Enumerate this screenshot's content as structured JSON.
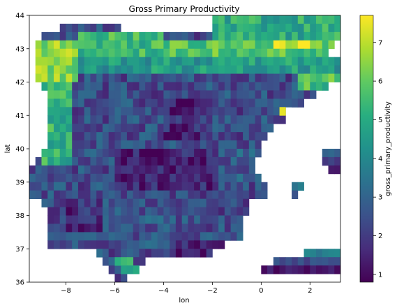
{
  "chart_data": {
    "type": "heatmap",
    "title": "Gross Primary Productivity",
    "xlabel": "lon",
    "ylabel": "lat",
    "colorbar_label": "gross_primary_productivity",
    "colormap": "viridis",
    "xlim": [
      -9.5,
      3.25
    ],
    "ylim": [
      36,
      44
    ],
    "clim": [
      0.8,
      7.7
    ],
    "cell_size_deg": 0.25,
    "x_ticks": [
      -8,
      -6,
      -4,
      -2,
      0,
      2
    ],
    "x_tick_labels": [
      "−8",
      "−6",
      "−4",
      "−2",
      "0",
      "2"
    ],
    "y_ticks": [
      36,
      37,
      38,
      39,
      40,
      41,
      42,
      43,
      44
    ],
    "y_tick_labels": [
      "36",
      "37",
      "38",
      "39",
      "40",
      "41",
      "42",
      "43",
      "44"
    ],
    "colorbar_ticks": [
      1,
      2,
      3,
      4,
      5,
      6,
      7
    ],
    "colorbar_tick_labels": [
      "1",
      "2",
      "3",
      "4",
      "5",
      "6",
      "7"
    ],
    "lat_rows": [
      {
        "lat_start": 43.75,
        "lon_start": -2,
        "lon_end": 3.25
      },
      {
        "lat_start": 43.5,
        "lon_start": -8.25,
        "lon_end": -5.75
      },
      {
        "lat_start": 43.5,
        "lon_start": -2,
        "lon_end": 3.25
      },
      {
        "lat_start": 43.25,
        "lon_start": -9.0,
        "lon_end": 3.25
      },
      {
        "lat_start": 43.0,
        "lon_start": -9.25,
        "lon_end": 3.0
      },
      {
        "lat_start": 42.75,
        "lon_start": -9.25,
        "lon_end": 2.75
      },
      {
        "lat_start": 42.5,
        "lon_start": -9.25,
        "lon_end": 3.25
      },
      {
        "lat_start": 42.25,
        "lon_start": -9.25,
        "lon_end": 3.25
      },
      {
        "lat_start": 42.0,
        "lon_start": -9.25,
        "lon_end": 3.25
      },
      {
        "lat_start": 41.75,
        "lon_start": -9.0,
        "lon_end": 2.75
      },
      {
        "lat_start": 41.5,
        "lon_start": -8.75,
        "lon_end": 2.25
      },
      {
        "lat_start": 41.25,
        "lon_start": -8.75,
        "lon_end": 1.75
      },
      {
        "lat_start": 41.0,
        "lon_start": -8.75,
        "lon_end": 1.0
      },
      {
        "lat_start": 40.75,
        "lon_start": -8.75,
        "lon_end": 1.0
      },
      {
        "lat_start": 40.5,
        "lon_start": -8.75,
        "lon_end": 0.5
      },
      {
        "lat_start": 40.25,
        "lon_start": -8.75,
        "lon_end": 0.25
      },
      {
        "lat_start": 40.0,
        "lon_start": -8.75,
        "lon_end": 0
      },
      {
        "lat_start": 39.75,
        "lon_start": -9.0,
        "lon_end": 0
      },
      {
        "lat_start": 39.5,
        "lon_start": -9.25,
        "lon_end": -0.25
      },
      {
        "lat_start": 39.25,
        "lon_start": -9.5,
        "lon_end": -0.25
      },
      {
        "lat_start": 39.0,
        "lon_start": -9.5,
        "lon_end": 0
      },
      {
        "lat_start": 38.75,
        "lon_start": -9.5,
        "lon_end": 0.25
      },
      {
        "lat_start": 38.5,
        "lon_start": -9.5,
        "lon_end": 0.25
      },
      {
        "lat_start": 38.25,
        "lon_start": -9.0,
        "lon_end": -0.5
      },
      {
        "lat_start": 38.0,
        "lon_start": -8.75,
        "lon_end": -0.5
      },
      {
        "lat_start": 37.75,
        "lon_start": -8.75,
        "lon_end": -0.75
      },
      {
        "lat_start": 37.5,
        "lon_start": -8.75,
        "lon_end": -0.75
      },
      {
        "lat_start": 37.25,
        "lon_start": -8.75,
        "lon_end": -0.75
      },
      {
        "lat_start": 37.0,
        "lon_start": -8.75,
        "lon_end": -1.5
      },
      {
        "lat_start": 36.75,
        "lon_start": -6.75,
        "lon_end": -2.0
      },
      {
        "lat_start": 36.5,
        "lon_start": -6.5,
        "lon_end": -4.75
      },
      {
        "lat_start": 36.25,
        "lon_start": -6.25,
        "lon_end": -5.5
      },
      {
        "lat_start": 36.0,
        "lon_start": -6.0,
        "lon_end": -5.5
      }
    ],
    "extra_patches": [
      {
        "lat_start": 41.5,
        "lon_start": -4.5,
        "lon_end": -4.25,
        "value": 1.2
      },
      {
        "lat_start": 41.0,
        "lon_start": 0.75,
        "lon_end": 1.0,
        "value": 7.6
      },
      {
        "lat_start": 41.25,
        "lon_start": 1.25,
        "lon_end": 1.75,
        "value": 2.6
      },
      {
        "lat_start": 39.75,
        "lon_start": 2.5,
        "lon_end": 3.25,
        "value": 3.2
      },
      {
        "lat_start": 39.5,
        "lon_start": 2.5,
        "lon_end": 3.25,
        "value": 2.0
      },
      {
        "lat_start": 39.25,
        "lon_start": 2.75,
        "lon_end": 3.25,
        "value": 1.3
      },
      {
        "lat_start": 38.75,
        "lon_start": 1.25,
        "lon_end": 1.75,
        "value": 3.6
      },
      {
        "lat_start": 38.5,
        "lon_start": 1.25,
        "lon_end": 1.5,
        "value": 2.4
      },
      {
        "lat_start": 36.75,
        "lon_start": 1.75,
        "lon_end": 3.25,
        "value": 3.8
      },
      {
        "lat_start": 36.5,
        "lon_start": 0.5,
        "lon_end": 3.25,
        "value": 2.4
      },
      {
        "lat_start": 36.25,
        "lon_start": 0,
        "lon_end": 3.25,
        "value": 1.2
      },
      {
        "lat_start": 36.5,
        "lon_start": -6.0,
        "lon_end": -5.25,
        "value": 5.3
      },
      {
        "lat_start": 36.25,
        "lon_start": -5.75,
        "lon_end": -5.0,
        "value": 4.8
      }
    ],
    "value_regions": [
      {
        "lat_min": 43.25,
        "lat_max": 44,
        "lon_min": -2,
        "lon_max": 3.25,
        "value": 5.0
      },
      {
        "lat_min": 42.0,
        "lat_max": 43.25,
        "lon_min": -9.5,
        "lon_max": -7.5,
        "value": 6.4
      },
      {
        "lat_min": 42.75,
        "lat_max": 43.5,
        "lon_min": -7.5,
        "lon_max": -4.0,
        "value": 5.4
      },
      {
        "lat_min": 42.75,
        "lat_max": 43.25,
        "lon_min": -4.0,
        "lon_max": 3.25,
        "value": 5.8
      },
      {
        "lat_min": 43.0,
        "lat_max": 43.25,
        "lon_min": 0.5,
        "lon_max": 2.5,
        "value": 7.3
      },
      {
        "lat_min": 42.25,
        "lat_max": 42.75,
        "lon_min": -7.5,
        "lon_max": -4.5,
        "value": 4.4
      },
      {
        "lat_min": 42.25,
        "lat_max": 42.75,
        "lon_min": -4.5,
        "lon_max": 3.25,
        "value": 4.6
      },
      {
        "lat_min": 41.75,
        "lat_max": 42.25,
        "lon_min": 1.5,
        "lon_max": 3.25,
        "value": 5.6
      },
      {
        "lat_min": 39.5,
        "lat_max": 42.0,
        "lon_min": -9.0,
        "lon_max": -7.75,
        "value": 5.2
      },
      {
        "lat_min": 40.25,
        "lat_max": 41.5,
        "lon_min": -4.0,
        "lon_max": -2.5,
        "value": 1.5
      },
      {
        "lat_min": 40.25,
        "lat_max": 41.25,
        "lon_min": -2.25,
        "lon_max": 0,
        "value": 2.3
      },
      {
        "lat_min": 38.75,
        "lat_max": 40.0,
        "lon_min": -6.0,
        "lon_max": -2.0,
        "value": 1.4
      },
      {
        "lat_min": 37.5,
        "lat_max": 38.5,
        "lon_min": -8.0,
        "lon_max": -6.5,
        "value": 1.6
      },
      {
        "lat_min": 37.0,
        "lat_max": 38.0,
        "lon_min": -6.0,
        "lon_max": -3.5,
        "value": 2.6
      },
      {
        "lat_min": 38.0,
        "lat_max": 38.75,
        "lon_min": -4.5,
        "lon_max": -1.0,
        "value": 2.2
      },
      {
        "lat_min": 36.75,
        "lat_max": 37.25,
        "lon_min": -3.5,
        "lon_max": -1.5,
        "value": 1.3
      },
      {
        "lat_min": 39.0,
        "lat_max": 40.0,
        "lon_min": -1.25,
        "lon_max": 0.25,
        "value": 2.8
      }
    ],
    "default_value": 2.4
  }
}
